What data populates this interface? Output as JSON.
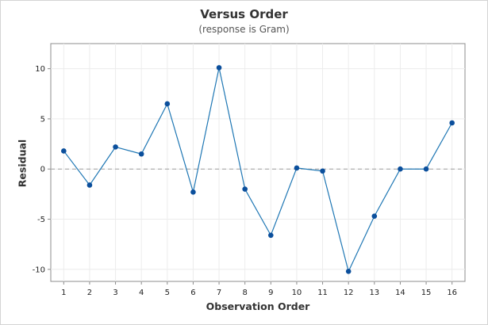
{
  "chart_data": {
    "type": "line",
    "title": "Versus Order",
    "subtitle": "(response is Gram)",
    "xlabel": "Observation Order",
    "ylabel": "Residual",
    "x": [
      1,
      2,
      3,
      4,
      5,
      6,
      7,
      8,
      9,
      10,
      11,
      12,
      13,
      14,
      15,
      16
    ],
    "series": [
      {
        "values": [
          1.8,
          -1.6,
          2.2,
          1.5,
          6.5,
          -2.3,
          10.1,
          -2.0,
          -6.6,
          0.1,
          -0.2,
          -10.2,
          -4.7,
          0.0,
          0.0,
          4.6
        ]
      }
    ],
    "xlim": [
      0.5,
      16.5
    ],
    "ylim": [
      -11.2,
      12.5
    ],
    "yticks": [
      -10,
      -5,
      0,
      5,
      10
    ],
    "reference_line": 0,
    "grid": true,
    "colors": {
      "line": "#1f77b4",
      "marker": "#0b4f9c",
      "reference": "#9e9e9e",
      "grid": "#ececec"
    }
  }
}
